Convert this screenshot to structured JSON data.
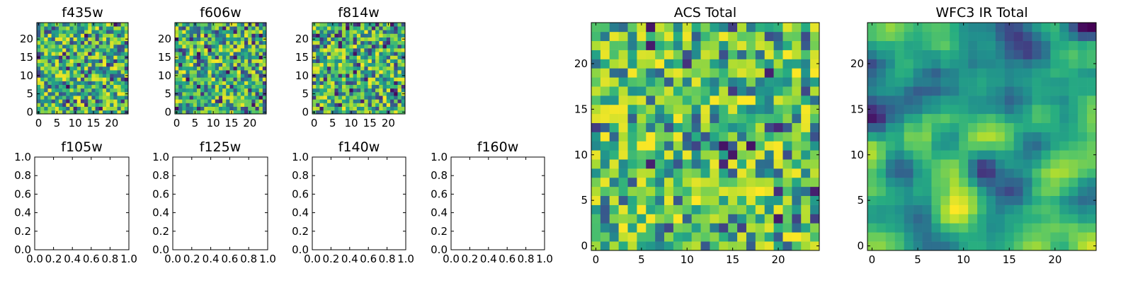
{
  "chart_data": [
    {
      "type": "heatmap",
      "name": "f435w",
      "title": "f435w",
      "colormap": "viridis",
      "grid_size": 25,
      "seed": 435,
      "mode": "noise",
      "xlim": [
        -0.5,
        24.5
      ],
      "ylim": [
        -0.5,
        24.5
      ],
      "xticks": [
        0,
        5,
        10,
        15,
        20
      ],
      "xtick_labels": [
        "0",
        "5",
        "10",
        "15",
        "20"
      ],
      "yticks": [
        0,
        5,
        10,
        15,
        20
      ],
      "ytick_labels": [
        "0",
        "5",
        "10",
        "15",
        "20"
      ]
    },
    {
      "type": "heatmap",
      "name": "f606w",
      "title": "f606w",
      "colormap": "viridis",
      "grid_size": 25,
      "seed": 606,
      "mode": "noise",
      "xlim": [
        -0.5,
        24.5
      ],
      "ylim": [
        -0.5,
        24.5
      ],
      "xticks": [
        0,
        5,
        10,
        15,
        20
      ],
      "xtick_labels": [
        "0",
        "5",
        "10",
        "15",
        "20"
      ],
      "yticks": [
        0,
        5,
        10,
        15,
        20
      ],
      "ytick_labels": [
        "0",
        "5",
        "10",
        "15",
        "20"
      ]
    },
    {
      "type": "heatmap",
      "name": "f814w",
      "title": "f814w",
      "colormap": "viridis",
      "grid_size": 25,
      "seed": 814,
      "mode": "noise",
      "xlim": [
        -0.5,
        24.5
      ],
      "ylim": [
        -0.5,
        24.5
      ],
      "xticks": [
        0,
        5,
        10,
        15,
        20
      ],
      "xtick_labels": [
        "0",
        "5",
        "10",
        "15",
        "20"
      ],
      "yticks": [
        0,
        5,
        10,
        15,
        20
      ],
      "ytick_labels": [
        "0",
        "5",
        "10",
        "15",
        "20"
      ]
    },
    {
      "type": "empty",
      "name": "f105w",
      "title": "f105w",
      "xlim": [
        0,
        1
      ],
      "ylim": [
        0,
        1
      ],
      "xticks": [
        0,
        0.2,
        0.4,
        0.6,
        0.8,
        1.0
      ],
      "xtick_labels": [
        "0.0",
        "0.2",
        "0.4",
        "0.6",
        "0.8",
        "1.0"
      ],
      "yticks": [
        0,
        0.2,
        0.4,
        0.6,
        0.8,
        1.0
      ],
      "ytick_labels": [
        "0.0",
        "0.2",
        "0.4",
        "0.6",
        "0.8",
        "1.0"
      ]
    },
    {
      "type": "empty",
      "name": "f125w",
      "title": "f125w",
      "xlim": [
        0,
        1
      ],
      "ylim": [
        0,
        1
      ],
      "xticks": [
        0,
        0.2,
        0.4,
        0.6,
        0.8,
        1.0
      ],
      "xtick_labels": [
        "0.0",
        "0.2",
        "0.4",
        "0.6",
        "0.8",
        "1.0"
      ],
      "yticks": [
        0,
        0.2,
        0.4,
        0.6,
        0.8,
        1.0
      ],
      "ytick_labels": [
        "0.0",
        "0.2",
        "0.4",
        "0.6",
        "0.8",
        "1.0"
      ]
    },
    {
      "type": "empty",
      "name": "f140w",
      "title": "f140w",
      "xlim": [
        0,
        1
      ],
      "ylim": [
        0,
        1
      ],
      "xticks": [
        0,
        0.2,
        0.4,
        0.6,
        0.8,
        1.0
      ],
      "xtick_labels": [
        "0.0",
        "0.2",
        "0.4",
        "0.6",
        "0.8",
        "1.0"
      ],
      "yticks": [
        0,
        0.2,
        0.4,
        0.6,
        0.8,
        1.0
      ],
      "ytick_labels": [
        "0.0",
        "0.2",
        "0.4",
        "0.6",
        "0.8",
        "1.0"
      ]
    },
    {
      "type": "empty",
      "name": "f160w",
      "title": "f160w",
      "xlim": [
        0,
        1
      ],
      "ylim": [
        0,
        1
      ],
      "xticks": [
        0,
        0.2,
        0.4,
        0.6,
        0.8,
        1.0
      ],
      "xtick_labels": [
        "0.0",
        "0.2",
        "0.4",
        "0.6",
        "0.8",
        "1.0"
      ],
      "yticks": [
        0,
        0.2,
        0.4,
        0.6,
        0.8,
        1.0
      ],
      "ytick_labels": [
        "0.0",
        "0.2",
        "0.4",
        "0.6",
        "0.8",
        "1.0"
      ]
    },
    {
      "type": "heatmap",
      "name": "acs-total",
      "title": "ACS Total",
      "colormap": "viridis",
      "grid_size": 25,
      "seed": 1234,
      "mode": "noise-bright",
      "xlim": [
        -0.5,
        24.5
      ],
      "ylim": [
        -0.5,
        24.5
      ],
      "xticks": [
        0,
        5,
        10,
        15,
        20
      ],
      "xtick_labels": [
        "0",
        "5",
        "10",
        "15",
        "20"
      ],
      "yticks": [
        0,
        5,
        10,
        15,
        20
      ],
      "ytick_labels": [
        "0",
        "5",
        "10",
        "15",
        "20"
      ]
    },
    {
      "type": "heatmap",
      "name": "wfc3-ir-total",
      "title": "WFC3 IR Total",
      "colormap": "viridis",
      "grid_size": 25,
      "seed": 3160,
      "mode": "smooth",
      "xlim": [
        -0.5,
        24.5
      ],
      "ylim": [
        -0.5,
        24.5
      ],
      "xticks": [
        0,
        5,
        10,
        15,
        20
      ],
      "xtick_labels": [
        "0",
        "5",
        "10",
        "15",
        "20"
      ],
      "yticks": [
        0,
        5,
        10,
        15,
        20
      ],
      "ytick_labels": [
        "0",
        "5",
        "10",
        "15",
        "20"
      ]
    }
  ]
}
